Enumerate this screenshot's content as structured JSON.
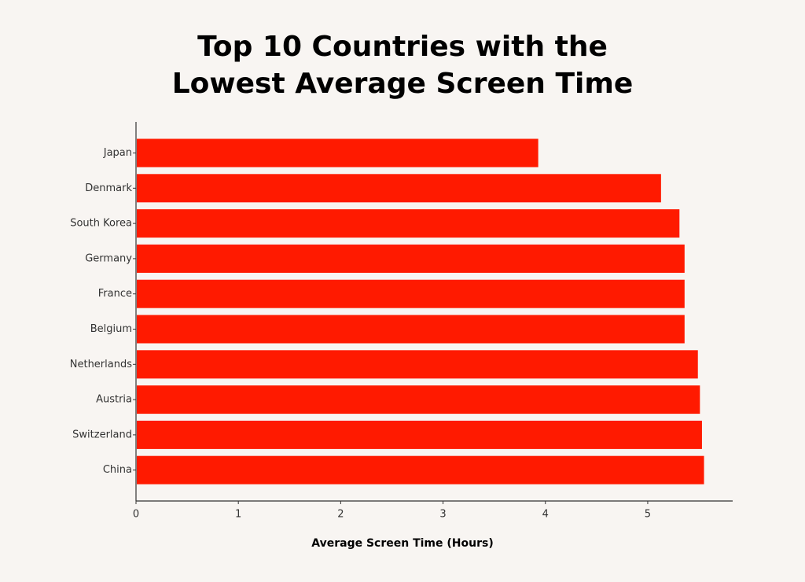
{
  "chart_data": {
    "type": "bar",
    "orientation": "horizontal",
    "title": [
      "Top 10 Countries with the",
      "Lowest Average Screen Time"
    ],
    "xlabel": "Average Screen Time (Hours)",
    "ylabel": "",
    "categories": [
      "Japan",
      "Denmark",
      "South Korea",
      "Germany",
      "France",
      "Belgium",
      "Netherlands",
      "Austria",
      "Switzerland",
      "China"
    ],
    "values": [
      3.93,
      5.13,
      5.31,
      5.36,
      5.36,
      5.36,
      5.49,
      5.51,
      5.53,
      5.55
    ],
    "xlim": [
      0,
      5.83
    ],
    "xticks": [
      "0",
      "1",
      "2",
      "3",
      "4",
      "5"
    ],
    "grid": false,
    "legend": "none",
    "bar_color": "#ff1a00",
    "axis_color": "#333333"
  }
}
